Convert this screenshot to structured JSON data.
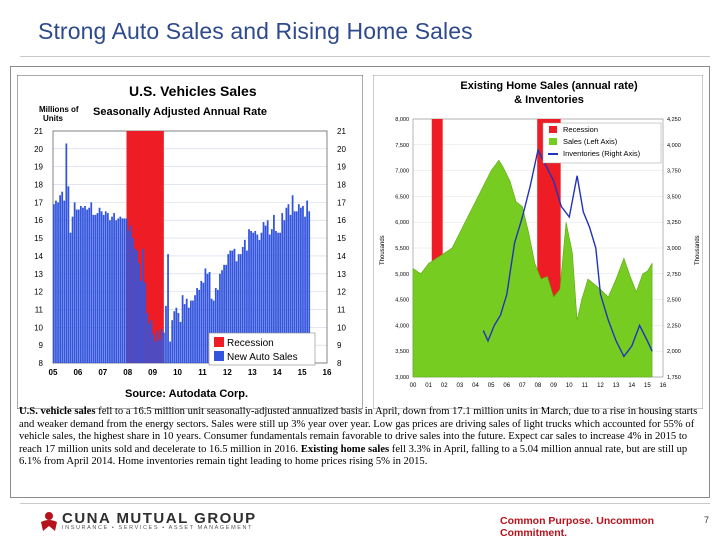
{
  "slide": {
    "title": "Strong Auto Sales and Rising Home Sales",
    "page_number": "7",
    "brand_name": "CUNA MUTUAL GROUP",
    "brand_sub": "INSURANCE • SERVICES • ASSET MANAGEMENT",
    "tagline": "Common Purpose. Uncommon Commitment.",
    "paragraph": [
      {
        "text": "U.S. vehicle sales",
        "bold": true
      },
      {
        "text": " fell to a 16.5 million unit seasonally-adjusted annualized basis in April, down from 17.1 million units in March, due to a rise in housing starts and weaker demand from the energy sectors. Sales were still up 3% year over year. Low gas prices are driving sales of light trucks which accounted for 55% of vehicle sales, the highest share in 10 years.  Consumer fundamentals remain favorable to drive sales into the future. Expect car sales to increase 4% in 2015 to reach 17 million units sold and decelerate to 16.5 million in 2016. ",
        "bold": false
      },
      {
        "text": " Existing home sales",
        "bold": true
      },
      {
        "text": " fell 3.3% in April, falling to a 5.04 million annual rate, but are still up 6.1% from April 2014. Home inventories remain tight leading to home prices rising 5% in 2015.",
        "bold": false
      }
    ]
  },
  "colors": {
    "title": "#2e4a8c",
    "recession": "#ee1c24",
    "auto_sales": "#3355dd",
    "home_sales": "#77cc22",
    "inventory": "#2233bb",
    "tagline": "#b5121b"
  },
  "chart_data": [
    {
      "type": "bar",
      "title": "U.S. Vehicles Sales",
      "subtitle": "Seasonally Adjusted Annual Rate",
      "ylabel": "Millions of Units",
      "source": "Source: Autodata Corp.",
      "ylim": [
        8,
        21
      ],
      "yticks": [
        8,
        9,
        10,
        11,
        12,
        13,
        14,
        15,
        16,
        17,
        18,
        19,
        20,
        21
      ],
      "xlim": [
        2005,
        2016
      ],
      "xtick_labels": [
        "05",
        "06",
        "07",
        "08",
        "09",
        "10",
        "11",
        "12",
        "13",
        "14",
        "15",
        "16"
      ],
      "legend": [
        "Recession",
        "New Auto Sales"
      ],
      "legend_position": "bottom-right",
      "recession": [
        2007.95,
        2009.45
      ],
      "series": [
        {
          "name": "New Auto Sales",
          "x_start": 2005,
          "step_months": 1,
          "values": [
            16.9,
            17.1,
            17.0,
            17.4,
            17.6,
            17.1,
            20.3,
            17.9,
            15.3,
            16.2,
            17.0,
            16.6,
            16.6,
            16.8,
            16.7,
            16.8,
            16.6,
            16.7,
            17.0,
            16.3,
            16.3,
            16.4,
            16.7,
            16.5,
            16.3,
            16.5,
            16.4,
            16.0,
            16.2,
            16.4,
            16.0,
            16.1,
            16.2,
            16.1,
            16.1,
            16.1,
            15.4,
            15.7,
            15.0,
            14.4,
            14.3,
            13.6,
            12.6,
            14.4,
            12.5,
            10.8,
            10.2,
            10.4,
            9.6,
            9.2,
            9.8,
            9.3,
            9.9,
            9.7,
            11.2,
            14.1,
            9.2,
            10.4,
            10.9,
            11.1,
            10.8,
            10.3,
            11.8,
            11.3,
            11.6,
            11.1,
            11.5,
            11.5,
            11.8,
            12.2,
            12.1,
            12.6,
            12.5,
            13.3,
            13.0,
            13.1,
            11.6,
            11.5,
            12.2,
            12.1,
            13.0,
            13.2,
            13.5,
            13.5,
            14.1,
            14.3,
            14.3,
            14.4,
            13.7,
            14.1,
            14.1,
            14.5,
            14.9,
            14.3,
            15.5,
            15.4,
            15.3,
            15.4,
            15.2,
            14.9,
            15.3,
            15.9,
            15.7,
            16.0,
            15.2,
            15.5,
            16.3,
            15.4,
            15.3,
            15.3,
            16.4,
            16.0,
            16.7,
            16.9,
            16.3,
            17.4,
            16.5,
            16.5,
            16.9,
            16.7,
            16.8,
            16.2,
            17.1,
            16.5
          ]
        }
      ]
    },
    {
      "type": "line",
      "title": "Existing Home Sales (annual rate) & Inventories",
      "ylabel": "Thousands",
      "y2label": "Thousands",
      "ylim": [
        3000,
        8000
      ],
      "yticks": [
        3000,
        3500,
        4000,
        4500,
        5000,
        5500,
        6000,
        6500,
        7000,
        7500,
        8000
      ],
      "y2lim": [
        1750,
        4250
      ],
      "y2ticks": [
        1750,
        2000,
        2250,
        2500,
        2750,
        3000,
        3250,
        3500,
        3750,
        4000,
        4250
      ],
      "xlim": [
        2000,
        2016
      ],
      "xtick_labels": [
        "00",
        "01",
        "02",
        "03",
        "04",
        "05",
        "06",
        "07",
        "08",
        "09",
        "10",
        "11",
        "12",
        "13",
        "14",
        "15",
        "16"
      ],
      "legend": [
        "Recession",
        "Sales (Left Axis)",
        "Inventories (Right Axis)"
      ],
      "legend_position": "top-right",
      "recession": [
        [
          2001.2,
          2001.9
        ],
        [
          2007.95,
          2009.45
        ]
      ],
      "series": [
        {
          "name": "Sales (Left Axis)",
          "axis": "left",
          "x": [
            2000,
            2000.5,
            2001,
            2001.5,
            2002,
            2002.5,
            2003,
            2003.5,
            2004,
            2004.5,
            2005,
            2005.5,
            2005.8,
            2006.2,
            2006.6,
            2007,
            2007.4,
            2007.8,
            2008.2,
            2008.6,
            2009,
            2009.4,
            2009.8,
            2010.2,
            2010.5,
            2010.8,
            2011.2,
            2011.6,
            2012,
            2012.5,
            2013,
            2013.5,
            2013.9,
            2014.3,
            2014.7,
            2015,
            2015.3
          ],
          "values": [
            5100,
            5000,
            5200,
            5300,
            5400,
            5500,
            5800,
            6100,
            6400,
            6700,
            7000,
            7200,
            7050,
            6800,
            6400,
            6300,
            5800,
            5200,
            4900,
            4950,
            4550,
            4700,
            6000,
            5400,
            4100,
            4500,
            4900,
            4800,
            4700,
            4550,
            4900,
            5300,
            4950,
            4650,
            5000,
            5050,
            5200
          ]
        },
        {
          "name": "Inventories (Right Axis)",
          "axis": "right",
          "x": [
            2004.5,
            2004.8,
            2005.2,
            2005.6,
            2006,
            2006.5,
            2007,
            2007.5,
            2008,
            2008.5,
            2009,
            2009.5,
            2010,
            2010.5,
            2010.9,
            2011.3,
            2011.7,
            2012,
            2012.5,
            2013,
            2013.5,
            2014,
            2014.5,
            2015,
            2015.3
          ],
          "values": [
            2200,
            2100,
            2250,
            2350,
            2550,
            3050,
            3300,
            3600,
            3950,
            3800,
            3650,
            3400,
            3300,
            3700,
            3350,
            3200,
            3000,
            2550,
            2300,
            2100,
            1950,
            2050,
            2250,
            2100,
            2000
          ]
        }
      ]
    }
  ]
}
